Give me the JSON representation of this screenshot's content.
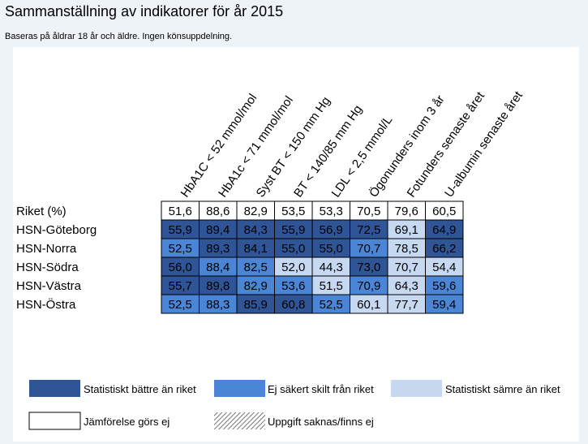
{
  "page": {
    "title": "Sammanställning av indikatorer för år 2015",
    "subtitle": "Baseras på åldrar 18 år och äldre. Ingen könsuppdelning."
  },
  "colors": {
    "better": "#2f5597",
    "uncertain": "#4b86d6",
    "worse": "#c6d9f0",
    "none": "#ffffff",
    "grid": "#000000"
  },
  "chart_data": {
    "type": "table",
    "columns": [
      "HbA1C < 52 mmol/mol",
      "HbA1c < 71 mmol/mol",
      "Syst BT < 150 mm Hg",
      "BT < 140/85 mm Hg",
      "LDL < 2,5 mmol/L",
      "Ögonunders inom 3 år",
      "Fotunders senaste året",
      "U-albumin senaste året"
    ],
    "rows": [
      {
        "label": "Riket (%)",
        "values": [
          "51,6",
          "88,6",
          "82,9",
          "53,5",
          "53,3",
          "70,5",
          "79,6",
          "60,5"
        ],
        "status": [
          "none",
          "none",
          "none",
          "none",
          "none",
          "none",
          "none",
          "none"
        ]
      },
      {
        "label": "HSN-Göteborg",
        "values": [
          "55,9",
          "89,4",
          "84,3",
          "55,9",
          "56,9",
          "72,5",
          "69,1",
          "64,9"
        ],
        "status": [
          "better",
          "better",
          "better",
          "better",
          "better",
          "better",
          "worse",
          "better"
        ]
      },
      {
        "label": "HSN-Norra",
        "values": [
          "52,5",
          "89,3",
          "84,1",
          "55,0",
          "55,0",
          "70,7",
          "78,5",
          "66,2"
        ],
        "status": [
          "uncertain",
          "better",
          "better",
          "better",
          "better",
          "uncertain",
          "worse",
          "better"
        ]
      },
      {
        "label": "HSN-Södra",
        "values": [
          "56,0",
          "88,4",
          "82,5",
          "52,0",
          "44,3",
          "73,0",
          "70,7",
          "54,4"
        ],
        "status": [
          "better",
          "uncertain",
          "uncertain",
          "worse",
          "worse",
          "better",
          "worse",
          "worse"
        ]
      },
      {
        "label": "HSN-Västra",
        "values": [
          "55,7",
          "89,8",
          "82,9",
          "53,6",
          "51,5",
          "70,9",
          "64,3",
          "59,6"
        ],
        "status": [
          "better",
          "better",
          "uncertain",
          "uncertain",
          "worse",
          "uncertain",
          "worse",
          "uncertain"
        ]
      },
      {
        "label": "HSN-Östra",
        "values": [
          "52,5",
          "88,3",
          "85,9",
          "60,8",
          "52,5",
          "60,1",
          "77,7",
          "59,4"
        ],
        "status": [
          "uncertain",
          "uncertain",
          "better",
          "better",
          "uncertain",
          "worse",
          "worse",
          "uncertain"
        ]
      }
    ]
  },
  "legend": [
    {
      "key": "better",
      "label": "Statistiskt bättre än riket"
    },
    {
      "key": "uncertain",
      "label": "Ej säkert skilt från riket"
    },
    {
      "key": "worse",
      "label": "Statistiskt sämre än riket"
    },
    {
      "key": "none",
      "label": "Jämförelse görs ej"
    },
    {
      "key": "missing",
      "label": "Uppgift saknas/finns ej"
    }
  ]
}
